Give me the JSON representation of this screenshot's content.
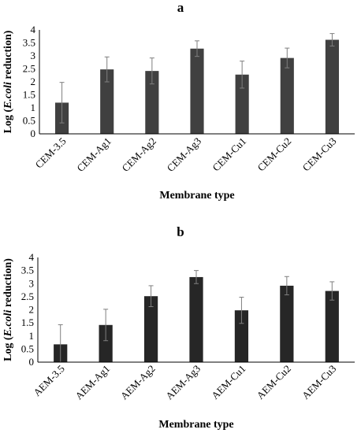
{
  "chart_data": [
    {
      "type": "bar",
      "panel_label": "a",
      "categories": [
        "CEM-3.5",
        "CEM-Ag1",
        "CEM-Ag2",
        "CEM-Ag3",
        "CEM-Cu1",
        "CEM-Cu2",
        "CEM-Cu3"
      ],
      "values": [
        1.2,
        2.48,
        2.42,
        3.28,
        2.28,
        2.92,
        3.62
      ],
      "errors": [
        0.78,
        0.48,
        0.5,
        0.3,
        0.52,
        0.38,
        0.24
      ],
      "xlabel": "Membrane type",
      "ylabel_prefix": "Log (",
      "ylabel_italic": "E.coli",
      "ylabel_suffix": " reduction)",
      "ylim": [
        0,
        4
      ],
      "yticks": [
        "0",
        "0.5",
        "1",
        "1.5",
        "2",
        "2.5",
        "3",
        "3.5",
        "4"
      ],
      "bar_color": "#404040",
      "grid": false
    },
    {
      "type": "bar",
      "panel_label": "b",
      "categories": [
        "AEM-3.5",
        "AEM-Ag1",
        "AEM-Ag2",
        "AEM-Ag3",
        "AEM-Cu1",
        "AEM-Cu2",
        "AEM-Cu3"
      ],
      "values": [
        0.68,
        1.42,
        2.52,
        3.25,
        1.98,
        2.92,
        2.72
      ],
      "errors": [
        0.75,
        0.6,
        0.4,
        0.25,
        0.5,
        0.35,
        0.35
      ],
      "xlabel": "Membrane type",
      "ylabel_prefix": "Log (",
      "ylabel_italic": "E.coli",
      "ylabel_suffix": " reduction)",
      "ylim": [
        0,
        4
      ],
      "yticks": [
        "0",
        "0.5",
        "1",
        "1.5",
        "2",
        "2.5",
        "3",
        "3.5",
        "4"
      ],
      "bar_color": "#262626",
      "grid": false
    }
  ]
}
